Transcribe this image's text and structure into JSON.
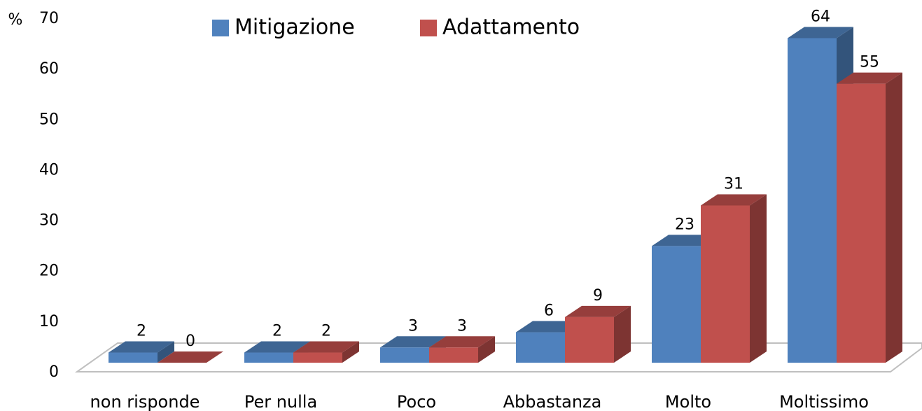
{
  "chart_data": {
    "type": "bar3d",
    "y_axis_label": "%",
    "categories": [
      "non risponde",
      "Per nulla",
      "Poco",
      "Abbastanza",
      "Molto",
      "Moltissimo"
    ],
    "series": [
      {
        "name": "Mitigazione",
        "color": "#4f81bd",
        "values": [
          2,
          2,
          3,
          6,
          23,
          64
        ]
      },
      {
        "name": "Adattamento",
        "color": "#c0504d",
        "values": [
          0,
          2,
          3,
          9,
          31,
          55
        ]
      }
    ],
    "ylim": [
      0,
      70
    ],
    "yticks": [
      0,
      10,
      20,
      30,
      40,
      50,
      60,
      70
    ],
    "legend": "top"
  }
}
